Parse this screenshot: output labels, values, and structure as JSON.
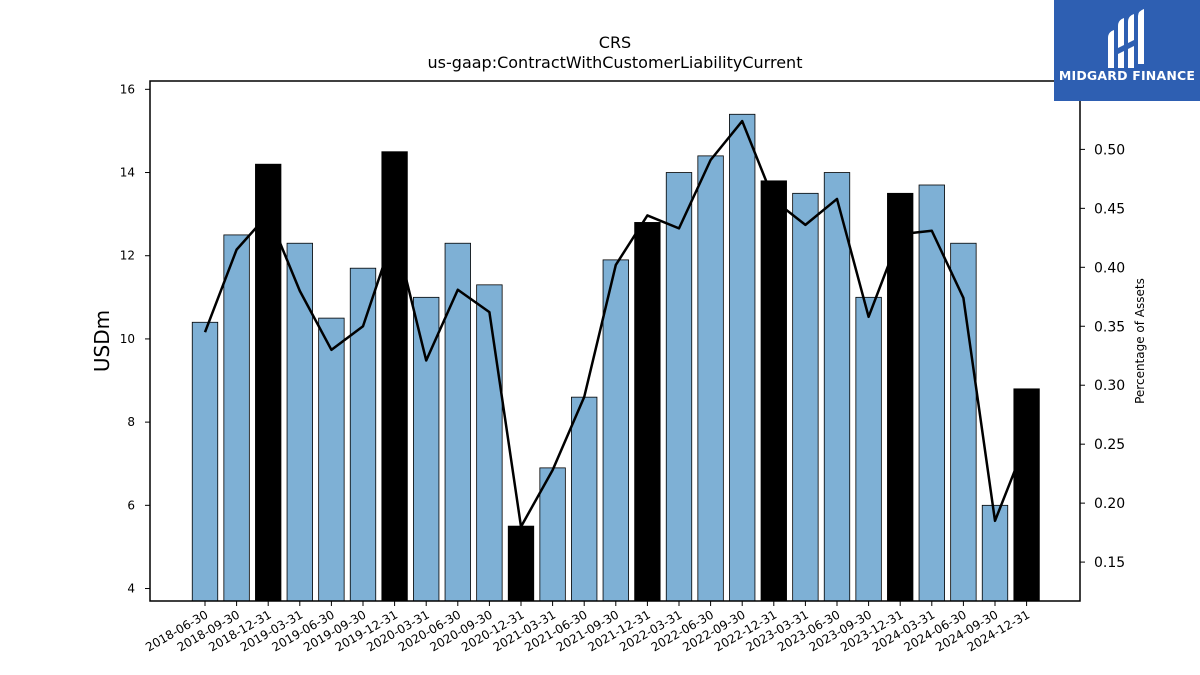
{
  "chart_data": {
    "type": "bar",
    "title": "CRS",
    "subtitle": "us-gaap:ContractWithCustomerLiabilityCurrent",
    "ylabel": "USDm",
    "y2label": "Percentage of Assets",
    "ylim": [
      3.7,
      16.2
    ],
    "y2lim": [
      0.117,
      0.558
    ],
    "yticks": [
      4,
      6,
      8,
      10,
      12,
      14,
      16
    ],
    "y2ticks": [
      "0.15",
      "0.20",
      "0.25",
      "0.30",
      "0.35",
      "0.40",
      "0.45",
      "0.50"
    ],
    "categories": [
      "2018-06-30",
      "2018-09-30",
      "2018-12-31",
      "2019-03-31",
      "2019-06-30",
      "2019-09-30",
      "2019-12-31",
      "2020-03-31",
      "2020-06-30",
      "2020-09-30",
      "2020-12-31",
      "2021-03-31",
      "2021-06-30",
      "2021-09-30",
      "2021-12-31",
      "2022-03-31",
      "2022-06-30",
      "2022-09-30",
      "2022-12-31",
      "2023-03-31",
      "2023-06-30",
      "2023-09-30",
      "2023-12-31",
      "2024-03-31",
      "2024-06-30",
      "2024-09-30",
      "2024-12-31"
    ],
    "series": [
      {
        "type": "bar",
        "values": [
          10.4,
          12.5,
          14.2,
          12.3,
          10.5,
          11.7,
          14.5,
          11.0,
          12.3,
          11.3,
          5.5,
          6.9,
          8.6,
          11.9,
          12.8,
          14.0,
          14.4,
          15.4,
          13.8,
          13.5,
          14.0,
          11.0,
          13.5,
          13.7,
          12.3,
          6.0,
          8.8
        ]
      },
      {
        "type": "line",
        "axis": "right",
        "values": [
          0.345,
          0.415,
          0.445,
          0.38,
          0.33,
          0.35,
          0.43,
          0.321,
          0.381,
          0.362,
          0.18,
          0.228,
          0.29,
          0.402,
          0.444,
          0.433,
          0.491,
          0.524,
          0.457,
          0.436,
          0.458,
          0.358,
          0.428,
          0.431,
          0.374,
          0.185,
          0.253
        ]
      }
    ],
    "highlight_categories": [
      "2018-12-31",
      "2019-12-31",
      "2020-12-31",
      "2021-12-31",
      "2022-12-31",
      "2023-12-31",
      "2024-12-31"
    ],
    "colors": {
      "bar": "#7eb0d5",
      "bar_highlight": "#000000",
      "line": "#000000"
    },
    "grid": false
  },
  "logo": {
    "text": "MIDGARD FINANCE",
    "color": "#2e5fb2"
  }
}
